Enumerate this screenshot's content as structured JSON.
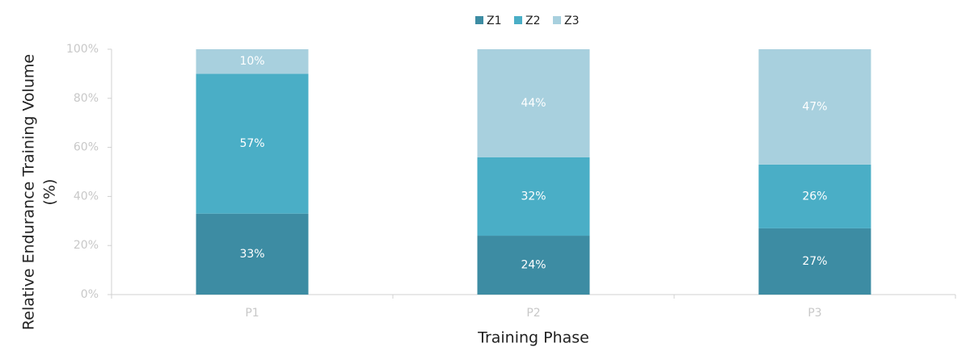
{
  "chart_data": {
    "type": "stacked_bar",
    "x_label": "Training Phase",
    "y_label": [
      "Relative Endurance Training Volume",
      "(%)"
    ],
    "categories": [
      "P1",
      "P2",
      "P3"
    ],
    "series": [
      {
        "name": "Z1",
        "color": "#3d8ca3",
        "values": [
          33,
          24,
          27
        ],
        "value_labels": [
          "33%",
          "24%",
          "27%"
        ]
      },
      {
        "name": "Z2",
        "color": "#4aaec6",
        "values": [
          57,
          32,
          26
        ],
        "value_labels": [
          "57%",
          "32%",
          "26%"
        ]
      },
      {
        "name": "Z3",
        "color": "#a8d0de",
        "values": [
          10,
          44,
          47
        ],
        "value_labels": [
          "10%",
          "44%",
          "47%"
        ]
      }
    ],
    "ylim": [
      0,
      100
    ],
    "yticks": [
      {
        "value": 0,
        "label": "0%"
      },
      {
        "value": 20,
        "label": "20%"
      },
      {
        "value": 40,
        "label": "40%"
      },
      {
        "value": 60,
        "label": "60%"
      },
      {
        "value": 80,
        "label": "80%"
      },
      {
        "value": 100,
        "label": "100%"
      }
    ],
    "grid": false,
    "legend": "top"
  }
}
